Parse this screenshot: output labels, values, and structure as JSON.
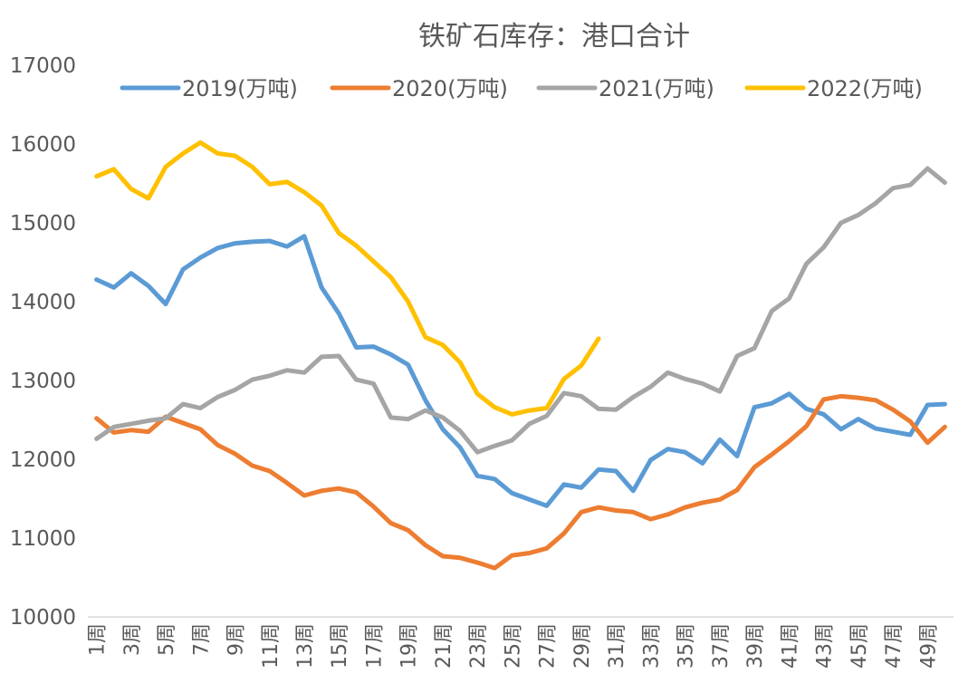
{
  "chart_data": {
    "type": "line",
    "title": "铁矿石库存：港口合计",
    "xlabel": "",
    "ylabel": "",
    "ylim": [
      10000,
      17000
    ],
    "yticks": [
      10000,
      11000,
      12000,
      13000,
      14000,
      15000,
      16000,
      17000
    ],
    "grid": false,
    "legend_position": "top",
    "x_tick_labels": [
      "1周",
      "3周",
      "5周",
      "7周",
      "9周",
      "11周",
      "13周",
      "15周",
      "17周",
      "19周",
      "21周",
      "23周",
      "25周",
      "27周",
      "29周",
      "31周",
      "33周",
      "35周",
      "37周",
      "39周",
      "41周",
      "43周",
      "45周",
      "47周",
      "49周"
    ],
    "series": [
      {
        "name": "2019(万吨)",
        "color": "#5B9BD5",
        "values": [
          14280,
          14180,
          14360,
          14200,
          13970,
          14410,
          14560,
          14680,
          14740,
          14760,
          14770,
          14700,
          14830,
          14180,
          13850,
          13420,
          13430,
          13330,
          13200,
          12750,
          12380,
          12150,
          11790,
          11750,
          11570,
          11490,
          11410,
          11680,
          11640,
          11870,
          11850,
          11600,
          11990,
          12130,
          12090,
          11950,
          12250,
          12040,
          12660,
          12710,
          12830,
          12640,
          12570,
          12380,
          12510,
          12390,
          12350,
          12310,
          12690,
          12700
        ]
      },
      {
        "name": "2020(万吨)",
        "color": "#ED7D31",
        "values": [
          12520,
          12340,
          12370,
          12350,
          12540,
          12460,
          12380,
          12180,
          12070,
          11920,
          11850,
          11700,
          11540,
          11600,
          11630,
          11580,
          11400,
          11190,
          11100,
          10910,
          10770,
          10750,
          10690,
          10620,
          10780,
          10810,
          10870,
          11060,
          11330,
          11390,
          11350,
          11330,
          11240,
          11300,
          11390,
          11450,
          11490,
          11610,
          11900,
          12060,
          12230,
          12420,
          12760,
          12800,
          12780,
          12750,
          12630,
          12480,
          12210,
          12410
        ]
      },
      {
        "name": "2021(万吨)",
        "color": "#A5A5A5",
        "values": [
          12260,
          12410,
          12450,
          12490,
          12520,
          12700,
          12650,
          12790,
          12880,
          13010,
          13060,
          13130,
          13100,
          13300,
          13310,
          13010,
          12960,
          12530,
          12510,
          12620,
          12530,
          12360,
          12090,
          12170,
          12240,
          12450,
          12550,
          12840,
          12800,
          12640,
          12630,
          12790,
          12920,
          13100,
          13020,
          12960,
          12860,
          13310,
          13410,
          13880,
          14040,
          14480,
          14690,
          15000,
          15100,
          15250,
          15440,
          15480,
          15690,
          15510
        ]
      },
      {
        "name": "2022(万吨)",
        "color": "#FFC000",
        "values": [
          15590,
          15680,
          15430,
          15310,
          15710,
          15880,
          16020,
          15880,
          15850,
          15710,
          15490,
          15520,
          15390,
          15220,
          14870,
          14710,
          14510,
          14310,
          14000,
          13550,
          13450,
          13230,
          12830,
          12660,
          12570,
          12620,
          12650,
          13020,
          13190,
          13530
        ]
      }
    ]
  }
}
